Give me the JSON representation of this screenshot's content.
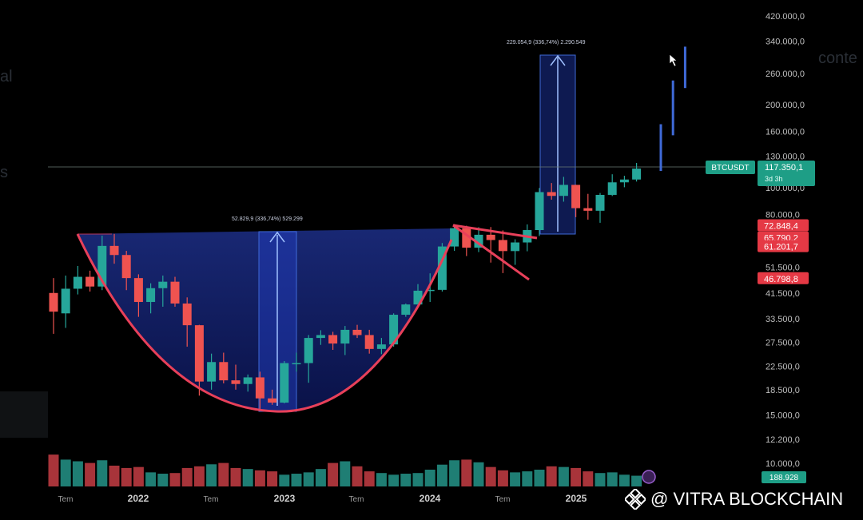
{
  "chart_data": {
    "type": "candlestick",
    "symbol_tag": "BTCUSDT",
    "price_box": {
      "price": "117.350,1",
      "countdown": "3d 3h"
    },
    "y_axis_ticks": [
      "420.000,0",
      "340.000,0",
      "260.000,0",
      "200.000,0",
      "160.000,0",
      "130.000,0",
      "100.000,0",
      "80.000,0",
      "51.500,0",
      "41.500,0",
      "33.500,0",
      "27.500,0",
      "22.500,0",
      "18.500,0",
      "15.000,0",
      "12.200,0",
      "10.000,0"
    ],
    "y_scale": "log",
    "ylim": [
      8800,
      460000
    ],
    "price_tags_red": [
      "72.848,4",
      "65.790,2",
      "61.201,7",
      "46.798,8"
    ],
    "volume_tag": "188.928",
    "x_axis_labels": [
      "Tem",
      "2022",
      "Tem",
      "2023",
      "Tem",
      "2024",
      "Tem",
      "2025"
    ],
    "measure_small_label": "52.829,9 (336,74%) 529.299",
    "measure_large_label": "229.054,9 (336,74%) 2.290.549",
    "candles": [
      {
        "o": 41500,
        "h": 47000,
        "l": 29500,
        "c": 35500
      },
      {
        "o": 35000,
        "h": 48000,
        "l": 31000,
        "c": 43000
      },
      {
        "o": 43000,
        "h": 52000,
        "l": 41000,
        "c": 47500
      },
      {
        "o": 47500,
        "h": 50000,
        "l": 42000,
        "c": 43800
      },
      {
        "o": 43800,
        "h": 67000,
        "l": 42500,
        "c": 61500
      },
      {
        "o": 61500,
        "h": 68000,
        "l": 53000,
        "c": 57000
      },
      {
        "o": 57000,
        "h": 59000,
        "l": 42500,
        "c": 47000
      },
      {
        "o": 47000,
        "h": 48500,
        "l": 34000,
        "c": 38500
      },
      {
        "o": 38500,
        "h": 45000,
        "l": 35000,
        "c": 43200
      },
      {
        "o": 43200,
        "h": 48000,
        "l": 37000,
        "c": 45600
      },
      {
        "o": 45600,
        "h": 47500,
        "l": 37000,
        "c": 38000
      },
      {
        "o": 38000,
        "h": 40000,
        "l": 26500,
        "c": 31700
      },
      {
        "o": 31700,
        "h": 31800,
        "l": 17600,
        "c": 19800
      },
      {
        "o": 19800,
        "h": 25000,
        "l": 18500,
        "c": 23300
      },
      {
        "o": 23300,
        "h": 25200,
        "l": 19500,
        "c": 20000
      },
      {
        "o": 20000,
        "h": 22800,
        "l": 18500,
        "c": 19400
      },
      {
        "o": 19400,
        "h": 21000,
        "l": 18200,
        "c": 20500
      },
      {
        "o": 20500,
        "h": 21500,
        "l": 15500,
        "c": 17200
      },
      {
        "o": 17200,
        "h": 18500,
        "l": 16300,
        "c": 16600
      },
      {
        "o": 16600,
        "h": 23500,
        "l": 16500,
        "c": 23100
      },
      {
        "o": 23100,
        "h": 25200,
        "l": 21500,
        "c": 23100
      },
      {
        "o": 23100,
        "h": 29200,
        "l": 19600,
        "c": 28500
      },
      {
        "o": 28500,
        "h": 30400,
        "l": 26900,
        "c": 29200
      },
      {
        "o": 29200,
        "h": 30000,
        "l": 25800,
        "c": 27200
      },
      {
        "o": 27200,
        "h": 31500,
        "l": 24700,
        "c": 30500
      },
      {
        "o": 30500,
        "h": 31800,
        "l": 28500,
        "c": 29200
      },
      {
        "o": 29200,
        "h": 30500,
        "l": 25000,
        "c": 26000
      },
      {
        "o": 26000,
        "h": 28500,
        "l": 24900,
        "c": 27000
      },
      {
        "o": 27000,
        "h": 35000,
        "l": 26500,
        "c": 34600
      },
      {
        "o": 34600,
        "h": 38000,
        "l": 34000,
        "c": 37700
      },
      {
        "o": 37700,
        "h": 44700,
        "l": 37600,
        "c": 42300
      },
      {
        "o": 42300,
        "h": 48900,
        "l": 38500,
        "c": 42600
      },
      {
        "o": 42600,
        "h": 63000,
        "l": 42000,
        "c": 61200
      },
      {
        "o": 61200,
        "h": 73800,
        "l": 59000,
        "c": 71300
      },
      {
        "o": 71300,
        "h": 72800,
        "l": 56500,
        "c": 60600
      },
      {
        "o": 60600,
        "h": 71900,
        "l": 58400,
        "c": 67500
      },
      {
        "o": 67500,
        "h": 72000,
        "l": 53500,
        "c": 64600
      },
      {
        "o": 64600,
        "h": 70000,
        "l": 49000,
        "c": 58900
      },
      {
        "o": 58900,
        "h": 65000,
        "l": 52500,
        "c": 63300
      },
      {
        "o": 63300,
        "h": 73600,
        "l": 58800,
        "c": 70200
      },
      {
        "o": 70200,
        "h": 99800,
        "l": 66800,
        "c": 96400
      },
      {
        "o": 96400,
        "h": 104000,
        "l": 90500,
        "c": 93400
      },
      {
        "o": 93400,
        "h": 109500,
        "l": 89000,
        "c": 102400
      },
      {
        "o": 102400,
        "h": 102500,
        "l": 78200,
        "c": 84300
      },
      {
        "o": 84300,
        "h": 95000,
        "l": 76600,
        "c": 82500
      },
      {
        "o": 82500,
        "h": 95700,
        "l": 74600,
        "c": 94200
      },
      {
        "o": 94200,
        "h": 111900,
        "l": 93300,
        "c": 104600
      },
      {
        "o": 104600,
        "h": 110500,
        "l": 100400,
        "c": 107100
      },
      {
        "o": 107100,
        "h": 123000,
        "l": 105300,
        "c": 117350
      }
    ],
    "projection_bars": [
      {
        "h": 170000,
        "l": 115000
      },
      {
        "h": 245000,
        "l": 155000
      },
      {
        "h": 325000,
        "l": 230000
      }
    ],
    "volume": [
      0.95,
      0.8,
      0.75,
      0.7,
      0.78,
      0.62,
      0.55,
      0.58,
      0.42,
      0.38,
      0.4,
      0.55,
      0.6,
      0.66,
      0.7,
      0.55,
      0.52,
      0.48,
      0.45,
      0.35,
      0.38,
      0.42,
      0.52,
      0.7,
      0.75,
      0.6,
      0.45,
      0.4,
      0.35,
      0.38,
      0.4,
      0.5,
      0.65,
      0.78,
      0.8,
      0.72,
      0.58,
      0.48,
      0.42,
      0.45,
      0.5,
      0.6,
      0.58,
      0.55,
      0.45,
      0.4,
      0.42,
      0.35,
      0.32
    ]
  },
  "ghost_text": {
    "left_1": "al",
    "left_2": "s",
    "right_1": "conte"
  },
  "watermark": {
    "text": "@ VITRA BLOCKCHAIN"
  },
  "colors": {
    "up": "#26a69a",
    "down": "#ef5350",
    "measure_fill": "#1c2f86",
    "measure_line": "#3f6ad8",
    "cup": "#e8405a",
    "tag_red": "#e53945",
    "tag_green": "#1e9e86"
  }
}
